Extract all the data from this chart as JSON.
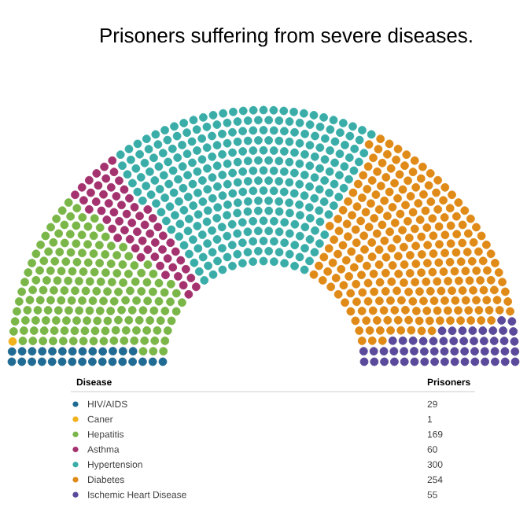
{
  "chart_data": {
    "type": "other",
    "title": "Prisoners suffering from severe diseases.",
    "legend_title": "Disease",
    "annotations": [
      "Prisoners"
    ],
    "categories": [
      "HIV/AIDS",
      "Caner",
      "Hepatitis",
      "Asthma",
      "Hypertension",
      "Diabetes",
      "Ischemic Heart Disease"
    ],
    "values": [
      29,
      1,
      169,
      60,
      300,
      254,
      55
    ],
    "colors": [
      "#1f6b94",
      "#f0b21d",
      "#7ab648",
      "#a3326f",
      "#3aada8",
      "#e08a18",
      "#5b4a9b"
    ],
    "data_labels": true
  }
}
